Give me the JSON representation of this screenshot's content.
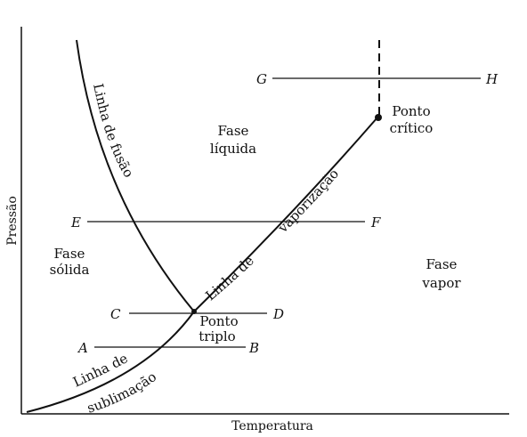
{
  "axes": {
    "y_label": "Pressão",
    "x_label": "Temperatura"
  },
  "regions": {
    "solid": [
      "Fase",
      "sólida"
    ],
    "liquid": [
      "Fase",
      "líquida"
    ],
    "vapor": [
      "Fase",
      "vapor"
    ]
  },
  "curves": {
    "fusion": "Linha de fusão",
    "vaporization": [
      "Linha de",
      "vaporização"
    ],
    "sublimation": [
      "Linha de",
      "sublimação"
    ]
  },
  "special_points": {
    "triple": [
      "Ponto",
      "triplo"
    ],
    "critical": [
      "Ponto",
      "crítico"
    ]
  },
  "line_endpoints": {
    "A": "A",
    "B": "B",
    "C": "C",
    "D": "D",
    "E": "E",
    "F": "F",
    "G": "G",
    "H": "H"
  }
}
